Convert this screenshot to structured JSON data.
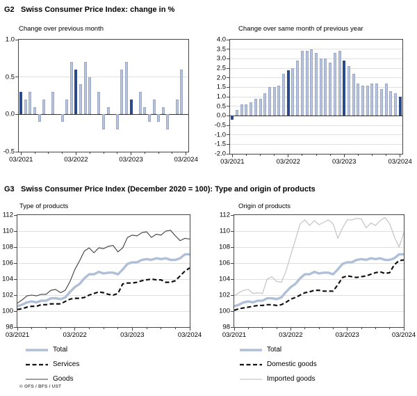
{
  "header_g2": {
    "tag": "G2",
    "title": "Swiss Consumer Price Index: change in %"
  },
  "header_g3": {
    "tag": "G3",
    "title": "Swiss Consumer Price Index (December 2020 = 100): Type and origin of products"
  },
  "copyright": "© OFS / BFS / UST",
  "colors": {
    "bar_light": "#b9c4da",
    "bar_light_border": "#9aa9c7",
    "bar_dark": "#2b4a8c",
    "total_line": "#aebfd7",
    "services_line": "#111111",
    "goods_line": "#3c3c3c",
    "imported_line": "#c7c7c7",
    "grid": "#e0e0e0",
    "axis": "#444444"
  },
  "chart_data": [
    {
      "id": "mom",
      "type": "bar",
      "title": "Change over previous month",
      "x_start": "03/2021",
      "x_end": "03/2024",
      "xticks": [
        "03/2021",
        "03/2022",
        "03/2023",
        "03/2024"
      ],
      "xtick_indices": [
        0,
        12,
        24,
        36
      ],
      "ylim": [
        -0.5,
        1.0
      ],
      "ytick_step": 0.5,
      "grid": true,
      "values": [
        0.3,
        0.2,
        0.3,
        0.1,
        -0.1,
        0.2,
        0.0,
        0.3,
        0.0,
        -0.1,
        0.2,
        0.7,
        0.6,
        0.4,
        0.7,
        0.5,
        0.0,
        0.3,
        -0.2,
        0.1,
        0.0,
        -0.2,
        0.6,
        0.7,
        0.2,
        0.0,
        0.3,
        0.1,
        -0.1,
        0.2,
        -0.1,
        0.1,
        -0.2,
        0.0,
        0.2,
        0.6,
        0.0
      ],
      "highlight_indices": [
        0,
        12,
        24,
        36
      ]
    },
    {
      "id": "yoy",
      "type": "bar",
      "title": "Change over same month of previous year",
      "x_start": "03/2021",
      "x_end": "03/2024",
      "xticks": [
        "03/2021",
        "03/2022",
        "03/2023",
        "03/2024"
      ],
      "xtick_indices": [
        0,
        12,
        24,
        36
      ],
      "ylim": [
        -2.0,
        4.0
      ],
      "ytick_step": 0.5,
      "grid": true,
      "values": [
        -0.2,
        0.3,
        0.6,
        0.6,
        0.7,
        0.9,
        0.9,
        1.2,
        1.5,
        1.5,
        1.6,
        2.2,
        2.4,
        2.5,
        2.9,
        3.4,
        3.4,
        3.5,
        3.3,
        3.0,
        3.0,
        2.8,
        3.3,
        3.4,
        2.9,
        2.6,
        2.2,
        1.7,
        1.6,
        1.6,
        1.7,
        1.7,
        1.4,
        1.7,
        1.3,
        1.2,
        1.0
      ],
      "highlight_indices": [
        0,
        12,
        24,
        36
      ]
    },
    {
      "id": "type",
      "type": "line",
      "title": "Type of products",
      "x_start": "03/2021",
      "x_end": "03/2024",
      "xticks": [
        "03/2021",
        "03/2022",
        "03/2023",
        "03/2024"
      ],
      "xtick_indices": [
        0,
        12,
        24,
        36
      ],
      "ylim": [
        98,
        112
      ],
      "ytick_step": 2,
      "grid": true,
      "legend_position": "bottom",
      "series": [
        {
          "name": "Total",
          "style": "total",
          "values": [
            100.6,
            100.8,
            101.1,
            101.2,
            101.1,
            101.3,
            101.3,
            101.6,
            101.6,
            101.5,
            101.7,
            102.4,
            103.0,
            103.4,
            104.1,
            104.6,
            104.6,
            104.9,
            104.7,
            104.8,
            104.8,
            104.6,
            105.2,
            105.9,
            106.1,
            106.1,
            106.4,
            106.5,
            106.4,
            106.6,
            106.5,
            106.6,
            106.4,
            106.4,
            106.6,
            107.1,
            107.1
          ]
        },
        {
          "name": "Services",
          "style": "dashed",
          "values": [
            100.2,
            100.3,
            100.5,
            100.6,
            100.6,
            100.8,
            100.8,
            100.9,
            100.9,
            100.9,
            101.2,
            101.5,
            101.6,
            101.6,
            101.7,
            102.0,
            102.2,
            102.4,
            102.3,
            102.1,
            102.0,
            102.2,
            103.4,
            103.5,
            103.5,
            103.6,
            103.8,
            103.9,
            104.0,
            103.9,
            103.9,
            103.6,
            103.6,
            103.8,
            104.4,
            105.0,
            105.4
          ]
        },
        {
          "name": "Goods",
          "style": "thin-dark",
          "values": [
            101.0,
            101.4,
            101.9,
            102.0,
            101.9,
            102.1,
            102.1,
            102.6,
            102.7,
            102.3,
            102.6,
            103.7,
            105.2,
            106.3,
            107.5,
            107.9,
            107.3,
            107.9,
            107.8,
            108.1,
            108.2,
            107.4,
            107.9,
            109.2,
            109.5,
            109.4,
            109.8,
            109.9,
            109.2,
            109.6,
            109.5,
            110.0,
            110.1,
            109.4,
            108.8,
            109.1,
            109.0
          ]
        }
      ]
    },
    {
      "id": "origin",
      "type": "line",
      "title": "Origin of products",
      "x_start": "03/2021",
      "x_end": "03/2024",
      "xticks": [
        "03/2021",
        "03/2022",
        "03/2023",
        "03/2024"
      ],
      "xtick_indices": [
        0,
        12,
        24,
        36
      ],
      "ylim": [
        98,
        112
      ],
      "ytick_step": 2,
      "grid": true,
      "legend_position": "bottom",
      "series": [
        {
          "name": "Total",
          "style": "total",
          "values": [
            100.6,
            100.8,
            101.1,
            101.2,
            101.1,
            101.3,
            101.3,
            101.6,
            101.6,
            101.5,
            101.7,
            102.4,
            103.0,
            103.4,
            104.1,
            104.6,
            104.6,
            104.9,
            104.7,
            104.8,
            104.8,
            104.6,
            105.2,
            105.9,
            106.1,
            106.1,
            106.4,
            106.5,
            106.4,
            106.6,
            106.5,
            106.6,
            106.4,
            106.4,
            106.6,
            107.1,
            107.1
          ]
        },
        {
          "name": "Domestic goods",
          "style": "dashed",
          "values": [
            100.1,
            100.3,
            100.4,
            100.5,
            100.6,
            100.7,
            100.7,
            100.8,
            100.8,
            100.7,
            100.8,
            101.1,
            101.5,
            101.7,
            102.0,
            102.3,
            102.4,
            102.6,
            102.6,
            102.5,
            102.5,
            102.5,
            103.3,
            104.2,
            104.4,
            104.3,
            104.2,
            104.3,
            104.4,
            104.6,
            104.8,
            104.9,
            104.7,
            104.8,
            105.8,
            106.3,
            106.4
          ]
        },
        {
          "name": "Imported goods",
          "style": "thin-light",
          "values": [
            101.9,
            102.3,
            102.6,
            102.7,
            102.2,
            102.3,
            102.2,
            104.0,
            104.3,
            103.7,
            103.6,
            105.0,
            107.0,
            108.9,
            110.9,
            111.4,
            110.7,
            111.3,
            110.8,
            111.1,
            111.4,
            110.9,
            109.1,
            110.4,
            111.4,
            111.4,
            111.6,
            111.5,
            110.4,
            111.0,
            110.7,
            111.3,
            111.7,
            110.9,
            109.3,
            108.0,
            109.8
          ]
        }
      ]
    }
  ]
}
